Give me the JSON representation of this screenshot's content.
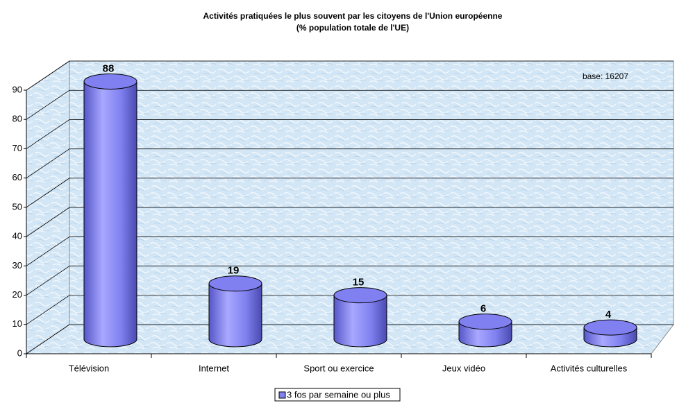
{
  "chart_data": {
    "type": "bar3d",
    "title": "Activités pratiquées le plus souvent par les citoyens de l'Union européenne",
    "subtitle": "(% population totale de l'UE)",
    "annotation": "base: 16207",
    "categories": [
      "Télévision",
      "Internet",
      "Sport ou exercice",
      "Jeux vidéo",
      "Activités culturelles"
    ],
    "series": [
      {
        "name": "3 fos par semaine ou plus",
        "color": "#8080f0",
        "values": [
          88,
          19,
          15,
          6,
          4
        ]
      }
    ],
    "ylim": [
      0,
      90
    ],
    "yticks": [
      0,
      10,
      20,
      30,
      40,
      50,
      60,
      70,
      80,
      90
    ],
    "grid": true,
    "legend": "bottom"
  }
}
